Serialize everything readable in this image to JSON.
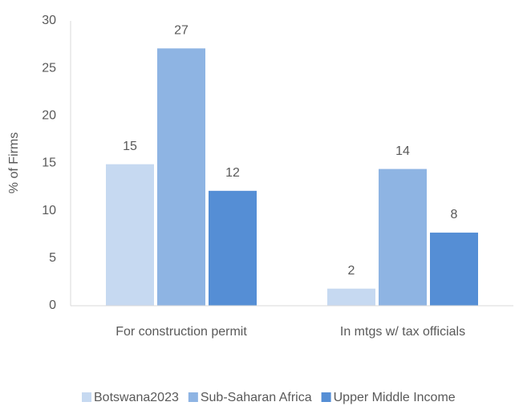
{
  "chart_data": {
    "type": "bar",
    "y_label": "% of Firms",
    "categories": [
      "For construction permit",
      "In mtgs w/ tax officials"
    ],
    "series": [
      {
        "name": "Botswana2023",
        "color": "#c6d9f1",
        "values": [
          14.9,
          1.8
        ],
        "value_labels": [
          "15",
          "2"
        ]
      },
      {
        "name": "Sub-Saharan Africa",
        "color": "#8eb4e3",
        "values": [
          27.1,
          14.4
        ],
        "value_labels": [
          "27",
          "14"
        ]
      },
      {
        "name": "Upper Middle Income",
        "color": "#558ed5",
        "values": [
          12.1,
          7.7
        ],
        "value_labels": [
          "12",
          "8"
        ]
      }
    ],
    "ylim": [
      0,
      30
    ],
    "yticks": [
      0,
      5,
      10,
      15,
      20,
      25,
      30
    ],
    "grid": false,
    "legend": "bottom"
  }
}
